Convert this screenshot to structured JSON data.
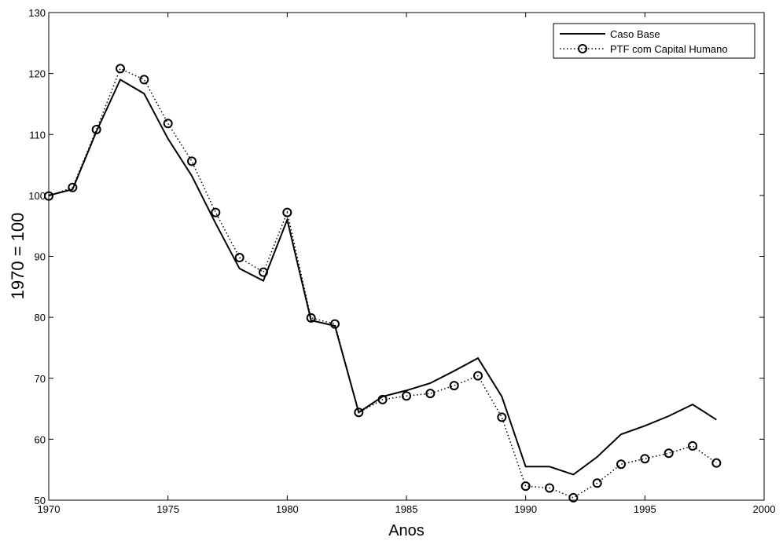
{
  "chart_data": {
    "type": "line",
    "xlabel": "Anos",
    "ylabel": "1970 = 100",
    "xlim": [
      1970,
      2000
    ],
    "ylim": [
      50,
      130
    ],
    "xticks": [
      1970,
      1975,
      1980,
      1985,
      1990,
      1995,
      2000
    ],
    "yticks": [
      50,
      60,
      70,
      80,
      90,
      100,
      110,
      120,
      130
    ],
    "grid": false,
    "legend_position": "top-right",
    "x": [
      1970,
      1971,
      1972,
      1973,
      1974,
      1975,
      1976,
      1977,
      1978,
      1979,
      1980,
      1981,
      1982,
      1983,
      1984,
      1985,
      1986,
      1987,
      1988,
      1989,
      1990,
      1991,
      1992,
      1993,
      1994,
      1995,
      1996,
      1997,
      1998
    ],
    "series": [
      {
        "name": "Caso Base",
        "style": "solid",
        "marker": "none",
        "values": [
          100,
          101,
          110.5,
          119,
          116.7,
          109.3,
          103.2,
          95.4,
          88,
          86,
          96,
          79.5,
          78.6,
          64.4,
          67,
          68,
          69.2,
          71.2,
          73.3,
          67,
          55.5,
          55.5,
          54.2,
          57.1,
          60.8,
          62.2,
          63.8,
          65.7,
          63.2
        ]
      },
      {
        "name": "PTF com Capital Humano",
        "style": "dotted",
        "marker": "circle",
        "values": [
          99.9,
          101.3,
          110.8,
          120.8,
          119,
          111.8,
          105.6,
          97.2,
          89.8,
          87.4,
          97.2,
          79.9,
          78.9,
          64.4,
          66.5,
          67.1,
          67.5,
          68.8,
          70.4,
          63.6,
          52.3,
          52,
          50.4,
          52.8,
          55.9,
          56.8,
          57.7,
          58.9,
          56.1
        ]
      }
    ]
  }
}
